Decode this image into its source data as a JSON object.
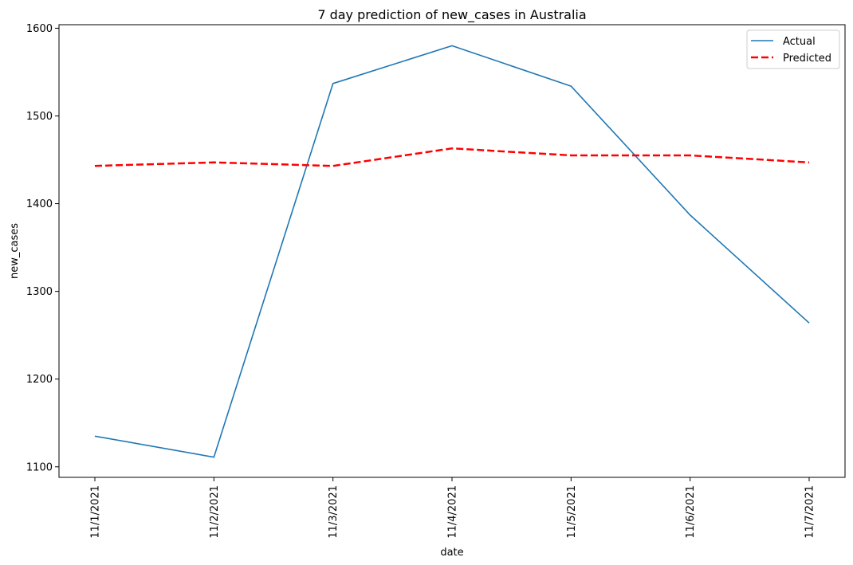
{
  "chart_data": {
    "type": "line",
    "title": "7 day prediction of new_cases in Australia",
    "xlabel": "date",
    "ylabel": "new_cases",
    "categories": [
      "11/1/2021",
      "11/2/2021",
      "11/3/2021",
      "11/4/2021",
      "11/5/2021",
      "11/6/2021",
      "11/7/2021"
    ],
    "ylim": [
      1088,
      1604
    ],
    "yticks": [
      1100,
      1200,
      1300,
      1400,
      1500,
      1600
    ],
    "grid": false,
    "legend_position": "top-right",
    "series": [
      {
        "name": "Actual",
        "color": "#1f77b4",
        "style": "solid",
        "values": [
          1135,
          1111,
          1537,
          1580,
          1534,
          1387,
          1264
        ]
      },
      {
        "name": "Predicted",
        "color": "#ff0000",
        "style": "dashed",
        "values": [
          1443,
          1447,
          1443,
          1463,
          1455,
          1455,
          1447
        ]
      }
    ]
  }
}
